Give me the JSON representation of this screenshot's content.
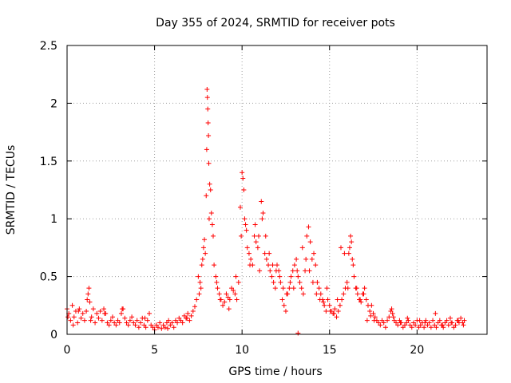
{
  "chart_data": {
    "type": "scatter",
    "title": "Day 355 of 2024, SRMTID for receiver pots",
    "xlabel": "GPS time / hours",
    "ylabel": "SRMTID / TECUs",
    "xlim": [
      0,
      24
    ],
    "ylim": [
      0,
      2.5
    ],
    "x_ticks": [
      0,
      5,
      10,
      15,
      20
    ],
    "y_ticks": [
      0,
      0.5,
      1,
      1.5,
      2,
      2.5
    ],
    "x_tick_labels": [
      "0",
      "5",
      "10",
      "15",
      "20"
    ],
    "y_tick_labels": [
      "0",
      "0.5",
      "1",
      "1.5",
      "2",
      "2.5"
    ],
    "grid": true,
    "marker": "+",
    "marker_color": "#ff0000",
    "series": [
      {
        "name": "SRMTID",
        "x": [
          0.0,
          0.1,
          0.2,
          0.3,
          0.4,
          0.5,
          0.6,
          0.7,
          0.8,
          0.9,
          1.0,
          1.1,
          1.2,
          1.25,
          1.3,
          1.4,
          1.5,
          1.6,
          1.7,
          1.8,
          1.9,
          2.0,
          2.1,
          2.2,
          2.3,
          2.4,
          2.5,
          2.6,
          2.7,
          2.8,
          2.9,
          3.0,
          3.1,
          3.2,
          3.3,
          3.4,
          3.5,
          3.6,
          3.7,
          3.8,
          3.9,
          4.0,
          4.1,
          4.2,
          4.3,
          4.4,
          4.5,
          4.6,
          4.7,
          4.8,
          4.9,
          5.0,
          5.1,
          5.2,
          5.3,
          5.4,
          5.5,
          5.6,
          5.7,
          5.8,
          5.9,
          6.0,
          6.1,
          6.2,
          6.3,
          6.4,
          6.5,
          6.6,
          6.7,
          6.8,
          6.9,
          7.0,
          7.1,
          7.2,
          7.3,
          7.4,
          7.5,
          7.6,
          7.7,
          7.8,
          7.85,
          7.9,
          7.95,
          8.0,
          8.02,
          8.04,
          8.06,
          8.08,
          8.1,
          8.15,
          8.2,
          8.25,
          8.3,
          8.4,
          8.5,
          8.6,
          8.7,
          8.8,
          8.9,
          9.0,
          9.1,
          9.2,
          9.3,
          9.4,
          9.5,
          9.6,
          9.7,
          9.8,
          9.9,
          10.0,
          10.05,
          10.1,
          10.15,
          10.2,
          10.3,
          10.4,
          10.5,
          10.6,
          10.7,
          10.8,
          10.9,
          11.0,
          11.1,
          11.2,
          11.3,
          11.4,
          11.5,
          11.6,
          11.7,
          11.8,
          11.9,
          12.0,
          12.1,
          12.2,
          12.3,
          12.4,
          12.5,
          12.6,
          12.7,
          12.8,
          12.9,
          13.0,
          13.1,
          13.2,
          13.3,
          13.4,
          13.5,
          13.6,
          13.7,
          13.8,
          13.9,
          14.0,
          14.1,
          14.2,
          14.3,
          14.4,
          14.5,
          14.6,
          14.7,
          14.8,
          14.9,
          15.0,
          15.1,
          15.2,
          15.3,
          15.4,
          15.5,
          15.6,
          15.7,
          15.8,
          15.9,
          16.0,
          16.1,
          16.15,
          16.2,
          16.25,
          16.3,
          16.4,
          16.5,
          16.6,
          16.7,
          16.8,
          16.9,
          17.0,
          17.1,
          17.2,
          17.3,
          17.4,
          17.5,
          17.6,
          17.7,
          17.8,
          17.9,
          18.0,
          18.1,
          18.2,
          18.3,
          18.4,
          18.5,
          18.6,
          18.7,
          18.8,
          18.9,
          19.0,
          19.1,
          19.2,
          19.3,
          19.4,
          19.5,
          19.6,
          19.7,
          19.8,
          19.9,
          20.0,
          20.1,
          20.2,
          20.3,
          20.4,
          20.5,
          20.6,
          20.7,
          20.8,
          20.9,
          21.0,
          21.1,
          21.2,
          21.3,
          21.4,
          21.5,
          21.6,
          21.7,
          21.8,
          21.9,
          22.0,
          22.1,
          22.2,
          22.3,
          22.4,
          22.5,
          22.6,
          22.7,
          0.05,
          0.35,
          0.65,
          1.15,
          1.35,
          2.15,
          3.15,
          4.45,
          5.75,
          6.85,
          7.55,
          7.75,
          7.98,
          8.12,
          8.35,
          8.55,
          8.75,
          9.25,
          9.65,
          9.95,
          10.25,
          10.45,
          10.75,
          10.95,
          11.15,
          11.35,
          11.55,
          11.75,
          11.95,
          12.15,
          12.35,
          12.55,
          12.75,
          12.95,
          13.15,
          13.45,
          13.65,
          13.85,
          14.05,
          14.25,
          14.45,
          14.65,
          14.85,
          15.05,
          15.25,
          15.45,
          15.65,
          15.85,
          16.05,
          16.35,
          16.55,
          16.75,
          16.95,
          17.15,
          17.35,
          17.55,
          18.55,
          18.65,
          19.05,
          19.45,
          20.15,
          20.45,
          21.05,
          21.45,
          21.95,
          22.35,
          22.65,
          13.2,
          7.65
        ],
        "y": [
          0.22,
          0.18,
          0.12,
          0.25,
          0.15,
          0.2,
          0.1,
          0.22,
          0.14,
          0.18,
          0.12,
          0.2,
          0.35,
          0.4,
          0.28,
          0.15,
          0.22,
          0.1,
          0.18,
          0.14,
          0.2,
          0.12,
          0.22,
          0.18,
          0.1,
          0.08,
          0.12,
          0.15,
          0.1,
          0.08,
          0.12,
          0.1,
          0.18,
          0.22,
          0.14,
          0.1,
          0.08,
          0.12,
          0.15,
          0.1,
          0.08,
          0.12,
          0.06,
          0.1,
          0.14,
          0.08,
          0.06,
          0.12,
          0.18,
          0.08,
          0.06,
          0.04,
          0.08,
          0.06,
          0.1,
          0.05,
          0.08,
          0.06,
          0.1,
          0.12,
          0.08,
          0.1,
          0.06,
          0.12,
          0.1,
          0.14,
          0.12,
          0.1,
          0.16,
          0.14,
          0.18,
          0.12,
          0.16,
          0.2,
          0.24,
          0.3,
          0.5,
          0.45,
          0.6,
          0.75,
          0.82,
          0.7,
          1.2,
          2.12,
          2.05,
          1.95,
          1.83,
          1.72,
          1.48,
          1.3,
          1.25,
          1.05,
          0.95,
          0.6,
          0.5,
          0.4,
          0.35,
          0.3,
          0.25,
          0.28,
          0.35,
          0.32,
          0.3,
          0.4,
          0.38,
          0.35,
          0.3,
          0.45,
          1.1,
          1.4,
          1.35,
          1.25,
          1.0,
          0.95,
          0.75,
          0.7,
          0.65,
          0.6,
          0.85,
          0.8,
          0.75,
          0.55,
          1.15,
          1.05,
          0.7,
          0.65,
          0.6,
          0.55,
          0.5,
          0.45,
          0.4,
          0.6,
          0.55,
          0.45,
          0.3,
          0.25,
          0.2,
          0.35,
          0.4,
          0.5,
          0.55,
          0.6,
          0.65,
          0.5,
          0.45,
          0.4,
          0.35,
          0.55,
          0.85,
          0.93,
          0.8,
          0.65,
          0.7,
          0.6,
          0.45,
          0.4,
          0.35,
          0.3,
          0.25,
          0.2,
          0.3,
          0.25,
          0.2,
          0.18,
          0.22,
          0.15,
          0.2,
          0.25,
          0.3,
          0.35,
          0.4,
          0.45,
          0.7,
          0.75,
          0.85,
          0.8,
          0.65,
          0.5,
          0.4,
          0.35,
          0.3,
          0.28,
          0.35,
          0.4,
          0.3,
          0.25,
          0.2,
          0.25,
          0.18,
          0.15,
          0.12,
          0.1,
          0.08,
          0.12,
          0.1,
          0.06,
          0.12,
          0.15,
          0.2,
          0.18,
          0.12,
          0.1,
          0.08,
          0.12,
          0.1,
          0.06,
          0.08,
          0.1,
          0.12,
          0.08,
          0.06,
          0.1,
          0.08,
          0.12,
          0.06,
          0.08,
          0.1,
          0.06,
          0.12,
          0.08,
          0.1,
          0.06,
          0.12,
          0.08,
          0.06,
          0.1,
          0.12,
          0.08,
          0.06,
          0.1,
          0.12,
          0.08,
          0.14,
          0.1,
          0.06,
          0.08,
          0.12,
          0.1,
          0.14,
          0.1,
          0.12,
          0.15,
          0.08,
          0.2,
          0.3,
          0.12,
          0.18,
          0.22,
          0.14,
          0.05,
          0.14,
          0.35,
          0.65,
          1.6,
          1.0,
          0.85,
          0.45,
          0.3,
          0.22,
          0.5,
          0.85,
          0.9,
          0.6,
          0.95,
          0.85,
          1.0,
          0.85,
          0.7,
          0.6,
          0.55,
          0.5,
          0.4,
          0.35,
          0.45,
          0.4,
          0.55,
          0.75,
          0.65,
          0.55,
          0.45,
          0.35,
          0.3,
          0.28,
          0.4,
          0.2,
          0.18,
          0.3,
          0.75,
          0.7,
          0.4,
          0.6,
          0.4,
          0.3,
          0.35,
          0.12,
          0.16,
          0.12,
          0.22,
          0.15,
          0.1,
          0.14,
          0.12,
          0.1,
          0.18,
          0.08,
          0.1,
          0.12,
          0.08,
          0.01,
          0.4
        ]
      }
    ]
  }
}
